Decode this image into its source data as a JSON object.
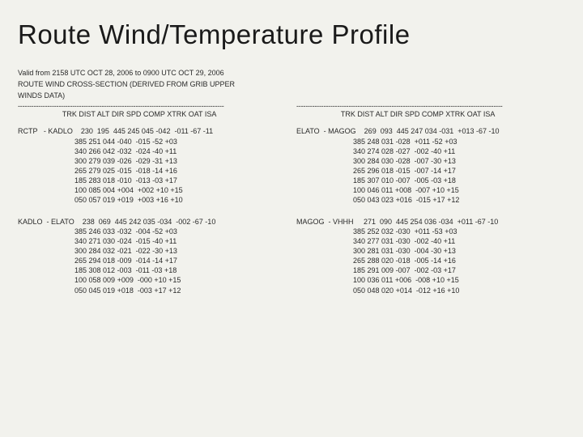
{
  "title": "Route Wind/Temperature Profile",
  "meta_line1": "Valid from 2158 UTC OCT 28, 2006 to 0900 UTC OCT 29, 2006",
  "meta_line2": "ROUTE WIND CROSS-SECTION (DERIVED FROM GRIB UPPER",
  "meta_line3": "WINDS DATA)",
  "dashline": "-------------------------------------------------------------------------------------------",
  "header_label": "TRK DIST ALT DIR SPD COMP XTRK OAT ISA",
  "column_keys": [
    "TRK",
    "DIST",
    "ALT",
    "DIR",
    "SPD",
    "COMP",
    "XTRK",
    "OAT",
    "ISA"
  ],
  "col_widths": {
    "FROM": 7,
    "TO": 8,
    "TRK": 4,
    "DIST": 4,
    "ALT": 4,
    "DIR": 4,
    "SPD": 4,
    "COMP": 5,
    "XTRK": 5,
    "OAT": 4,
    "ISA": 4
  },
  "left_blocks": [
    {
      "from": "RCTP",
      "to": "KADLO",
      "trk": "230",
      "dist": "195",
      "rows": [
        {
          "ALT": "445",
          "DIR": "245",
          "SPD": "045",
          "COMP": "-042",
          "XTRK": "-011",
          "OAT": "-67",
          "ISA": "-11"
        },
        {
          "ALT": "385",
          "DIR": "251",
          "SPD": "044",
          "COMP": "-040",
          "XTRK": "-015",
          "OAT": "-52",
          "ISA": "+03"
        },
        {
          "ALT": "340",
          "DIR": "266",
          "SPD": "042",
          "COMP": "-032",
          "XTRK": "-024",
          "OAT": "-40",
          "ISA": "+11"
        },
        {
          "ALT": "300",
          "DIR": "279",
          "SPD": "039",
          "COMP": "-026",
          "XTRK": "-029",
          "OAT": "-31",
          "ISA": "+13"
        },
        {
          "ALT": "265",
          "DIR": "279",
          "SPD": "025",
          "COMP": "-015",
          "XTRK": "-018",
          "OAT": "-14",
          "ISA": "+16"
        },
        {
          "ALT": "185",
          "DIR": "283",
          "SPD": "018",
          "COMP": "-010",
          "XTRK": "-013",
          "OAT": "-03",
          "ISA": "+17"
        },
        {
          "ALT": "100",
          "DIR": "085",
          "SPD": "004",
          "COMP": "+004",
          "XTRK": "+002",
          "OAT": "+10",
          "ISA": "+15"
        },
        {
          "ALT": "050",
          "DIR": "057",
          "SPD": "019",
          "COMP": "+019",
          "XTRK": "+003",
          "OAT": "+16",
          "ISA": "+10"
        }
      ]
    },
    {
      "from": "KADLO",
      "to": "ELATO",
      "trk": "238",
      "dist": "069",
      "rows": [
        {
          "ALT": "445",
          "DIR": "242",
          "SPD": "035",
          "COMP": "-034",
          "XTRK": "-002",
          "OAT": "-67",
          "ISA": "-10"
        },
        {
          "ALT": "385",
          "DIR": "246",
          "SPD": "033",
          "COMP": "-032",
          "XTRK": "-004",
          "OAT": "-52",
          "ISA": "+03"
        },
        {
          "ALT": "340",
          "DIR": "271",
          "SPD": "030",
          "COMP": "-024",
          "XTRK": "-015",
          "OAT": "-40",
          "ISA": "+11"
        },
        {
          "ALT": "300",
          "DIR": "284",
          "SPD": "032",
          "COMP": "-021",
          "XTRK": "-022",
          "OAT": "-30",
          "ISA": "+13"
        },
        {
          "ALT": "265",
          "DIR": "294",
          "SPD": "018",
          "COMP": "-009",
          "XTRK": "-014",
          "OAT": "-14",
          "ISA": "+17"
        },
        {
          "ALT": "185",
          "DIR": "308",
          "SPD": "012",
          "COMP": "-003",
          "XTRK": "-011",
          "OAT": "-03",
          "ISA": "+18"
        },
        {
          "ALT": "100",
          "DIR": "058",
          "SPD": "009",
          "COMP": "+009",
          "XTRK": "-000",
          "OAT": "+10",
          "ISA": "+15"
        },
        {
          "ALT": "050",
          "DIR": "045",
          "SPD": "019",
          "COMP": "+018",
          "XTRK": "-003",
          "OAT": "+17",
          "ISA": "+12"
        }
      ]
    }
  ],
  "right_blocks": [
    {
      "from": "ELATO",
      "to": "MAGOG",
      "trk": "269",
      "dist": "093",
      "rows": [
        {
          "ALT": "445",
          "DIR": "247",
          "SPD": "034",
          "COMP": "-031",
          "XTRK": "+013",
          "OAT": "-67",
          "ISA": "-10"
        },
        {
          "ALT": "385",
          "DIR": "248",
          "SPD": "031",
          "COMP": "-028",
          "XTRK": "+011",
          "OAT": "-52",
          "ISA": "+03"
        },
        {
          "ALT": "340",
          "DIR": "274",
          "SPD": "028",
          "COMP": "-027",
          "XTRK": "-002",
          "OAT": "-40",
          "ISA": "+11"
        },
        {
          "ALT": "300",
          "DIR": "284",
          "SPD": "030",
          "COMP": "-028",
          "XTRK": "-007",
          "OAT": "-30",
          "ISA": "+13"
        },
        {
          "ALT": "265",
          "DIR": "296",
          "SPD": "018",
          "COMP": "-015",
          "XTRK": "-007",
          "OAT": "-14",
          "ISA": "+17"
        },
        {
          "ALT": "185",
          "DIR": "307",
          "SPD": "010",
          "COMP": "-007",
          "XTRK": "-005",
          "OAT": "-03",
          "ISA": "+18"
        },
        {
          "ALT": "100",
          "DIR": "046",
          "SPD": "011",
          "COMP": "+008",
          "XTRK": "-007",
          "OAT": "+10",
          "ISA": "+15"
        },
        {
          "ALT": "050",
          "DIR": "043",
          "SPD": "023",
          "COMP": "+016",
          "XTRK": "-015",
          "OAT": "+17",
          "ISA": "+12"
        }
      ]
    },
    {
      "from": "MAGOG",
      "to": "VHHH",
      "trk": "271",
      "dist": "090",
      "rows": [
        {
          "ALT": "445",
          "DIR": "254",
          "SPD": "036",
          "COMP": "-034",
          "XTRK": "+011",
          "OAT": "-67",
          "ISA": "-10"
        },
        {
          "ALT": "385",
          "DIR": "252",
          "SPD": "032",
          "COMP": "-030",
          "XTRK": "+011",
          "OAT": "-53",
          "ISA": "+03"
        },
        {
          "ALT": "340",
          "DIR": "277",
          "SPD": "031",
          "COMP": "-030",
          "XTRK": "-002",
          "OAT": "-40",
          "ISA": "+11"
        },
        {
          "ALT": "300",
          "DIR": "281",
          "SPD": "031",
          "COMP": "-030",
          "XTRK": "-004",
          "OAT": "-30",
          "ISA": "+13"
        },
        {
          "ALT": "265",
          "DIR": "288",
          "SPD": "020",
          "COMP": "-018",
          "XTRK": "-005",
          "OAT": "-14",
          "ISA": "+16"
        },
        {
          "ALT": "185",
          "DIR": "291",
          "SPD": "009",
          "COMP": "-007",
          "XTRK": "-002",
          "OAT": "-03",
          "ISA": "+17"
        },
        {
          "ALT": "100",
          "DIR": "036",
          "SPD": "011",
          "COMP": "+006",
          "XTRK": "-008",
          "OAT": "+10",
          "ISA": "+15"
        },
        {
          "ALT": "050",
          "DIR": "048",
          "SPD": "020",
          "COMP": "+014",
          "XTRK": "-012",
          "OAT": "+16",
          "ISA": "+10"
        }
      ]
    }
  ]
}
